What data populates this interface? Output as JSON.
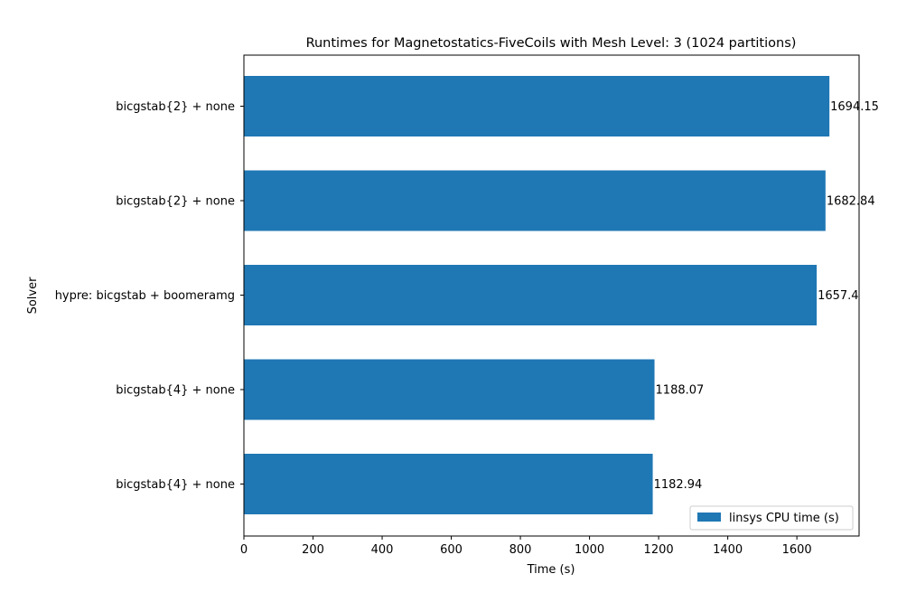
{
  "chart_data": {
    "type": "bar",
    "orientation": "horizontal",
    "title": "Runtimes for Magnetostatics-FiveCoils with Mesh Level: 3 (1024 partitions)",
    "xlabel": "Time (s)",
    "ylabel": "Solver",
    "xlim": [
      0,
      1780
    ],
    "xticks": [
      0,
      200,
      400,
      600,
      800,
      1000,
      1200,
      1400,
      1600
    ],
    "categories": [
      "bicgstab{2} + none",
      "bicgstab{2} + none",
      "hypre: bicgstab + boomeramg",
      "bicgstab{4} + none",
      "bicgstab{4} + none"
    ],
    "series": [
      {
        "name": "linsys CPU time (s)",
        "values": [
          1694.15,
          1682.84,
          1657.4,
          1188.07,
          1182.94
        ],
        "labels": [
          "1694.15",
          "1682.84",
          "1657.4",
          "1188.07",
          "1182.94"
        ],
        "color": "#1f77b4"
      }
    ],
    "legend": "bottom-right",
    "grid": false
  }
}
